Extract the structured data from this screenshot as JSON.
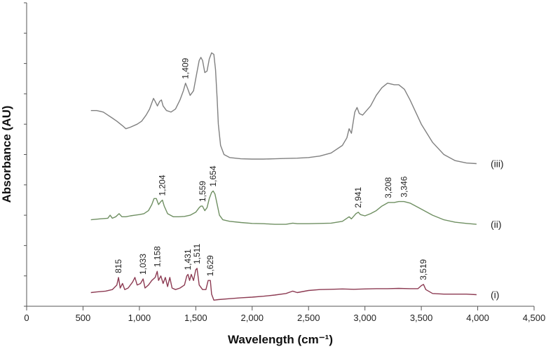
{
  "chart_data": {
    "type": "line",
    "title": "",
    "xlabel": "Wavelength (cm⁻¹)",
    "ylabel": "Absorbance (AU)",
    "xlim": [
      0,
      4500
    ],
    "ylim": [
      0,
      10
    ],
    "x_ticks": [
      0,
      500,
      1000,
      1500,
      2000,
      2500,
      3000,
      3500,
      4000,
      4500
    ],
    "x_tick_labels": [
      "0",
      "500",
      "1,000",
      "1,500",
      "2,000",
      "2,500",
      "3,000",
      "3,500",
      "4,000",
      "4,500"
    ],
    "y_ticks": [
      0,
      1,
      2,
      3,
      4,
      5,
      6,
      7,
      8,
      9,
      10
    ],
    "y_tick_labels_shown": false,
    "grid": false,
    "legend": "none",
    "series": [
      {
        "name": "(i)",
        "color": "#8c3a52",
        "points": [
          [
            570,
            0.45
          ],
          [
            620,
            0.47
          ],
          [
            700,
            0.5
          ],
          [
            760,
            0.55
          ],
          [
            800,
            0.7
          ],
          [
            815,
            0.95
          ],
          [
            830,
            0.6
          ],
          [
            850,
            0.75
          ],
          [
            870,
            0.55
          ],
          [
            900,
            0.6
          ],
          [
            940,
            0.8
          ],
          [
            960,
            0.95
          ],
          [
            980,
            0.7
          ],
          [
            1010,
            0.75
          ],
          [
            1033,
            0.9
          ],
          [
            1050,
            0.6
          ],
          [
            1080,
            0.7
          ],
          [
            1110,
            0.85
          ],
          [
            1140,
            0.95
          ],
          [
            1158,
            1.15
          ],
          [
            1170,
            0.85
          ],
          [
            1190,
            1.0
          ],
          [
            1210,
            0.75
          ],
          [
            1230,
            0.95
          ],
          [
            1250,
            0.65
          ],
          [
            1270,
            0.95
          ],
          [
            1290,
            0.6
          ],
          [
            1320,
            0.55
          ],
          [
            1360,
            0.6
          ],
          [
            1400,
            0.7
          ],
          [
            1420,
            1.0
          ],
          [
            1431,
            1.05
          ],
          [
            1445,
            0.85
          ],
          [
            1460,
            1.05
          ],
          [
            1480,
            0.85
          ],
          [
            1500,
            1.2
          ],
          [
            1511,
            1.25
          ],
          [
            1530,
            0.7
          ],
          [
            1560,
            0.55
          ],
          [
            1590,
            0.55
          ],
          [
            1610,
            0.85
          ],
          [
            1629,
            0.85
          ],
          [
            1640,
            0.4
          ],
          [
            1660,
            0.2
          ],
          [
            1700,
            0.22
          ],
          [
            1800,
            0.25
          ],
          [
            1900,
            0.28
          ],
          [
            2000,
            0.3
          ],
          [
            2100,
            0.33
          ],
          [
            2200,
            0.37
          ],
          [
            2300,
            0.42
          ],
          [
            2360,
            0.5
          ],
          [
            2400,
            0.45
          ],
          [
            2500,
            0.52
          ],
          [
            2600,
            0.55
          ],
          [
            2700,
            0.56
          ],
          [
            2800,
            0.57
          ],
          [
            2900,
            0.56
          ],
          [
            3000,
            0.57
          ],
          [
            3100,
            0.58
          ],
          [
            3200,
            0.58
          ],
          [
            3300,
            0.59
          ],
          [
            3400,
            0.58
          ],
          [
            3470,
            0.58
          ],
          [
            3500,
            0.68
          ],
          [
            3519,
            0.72
          ],
          [
            3540,
            0.55
          ],
          [
            3600,
            0.42
          ],
          [
            3700,
            0.4
          ],
          [
            3800,
            0.4
          ],
          [
            3900,
            0.4
          ],
          [
            3990,
            0.38
          ]
        ]
      },
      {
        "name": "(ii)",
        "color": "#6f8f62",
        "points": [
          [
            570,
            2.85
          ],
          [
            650,
            2.88
          ],
          [
            720,
            2.9
          ],
          [
            740,
            3.0
          ],
          [
            760,
            2.9
          ],
          [
            790,
            2.95
          ],
          [
            820,
            3.05
          ],
          [
            845,
            2.95
          ],
          [
            880,
            2.95
          ],
          [
            920,
            2.98
          ],
          [
            960,
            3.0
          ],
          [
            1000,
            3.02
          ],
          [
            1040,
            3.05
          ],
          [
            1080,
            3.15
          ],
          [
            1110,
            3.35
          ],
          [
            1130,
            3.55
          ],
          [
            1150,
            3.55
          ],
          [
            1170,
            3.35
          ],
          [
            1190,
            3.45
          ],
          [
            1204,
            3.5
          ],
          [
            1220,
            3.3
          ],
          [
            1250,
            3.05
          ],
          [
            1300,
            2.95
          ],
          [
            1350,
            2.95
          ],
          [
            1400,
            2.96
          ],
          [
            1450,
            3.0
          ],
          [
            1500,
            3.1
          ],
          [
            1530,
            3.25
          ],
          [
            1545,
            3.3
          ],
          [
            1559,
            3.3
          ],
          [
            1580,
            3.15
          ],
          [
            1600,
            3.25
          ],
          [
            1620,
            3.55
          ],
          [
            1640,
            3.75
          ],
          [
            1654,
            3.8
          ],
          [
            1670,
            3.7
          ],
          [
            1690,
            3.35
          ],
          [
            1710,
            3.0
          ],
          [
            1740,
            2.85
          ],
          [
            1800,
            2.8
          ],
          [
            1900,
            2.76
          ],
          [
            2000,
            2.73
          ],
          [
            2100,
            2.72
          ],
          [
            2200,
            2.7
          ],
          [
            2300,
            2.7
          ],
          [
            2360,
            2.74
          ],
          [
            2400,
            2.72
          ],
          [
            2500,
            2.72
          ],
          [
            2600,
            2.73
          ],
          [
            2700,
            2.74
          ],
          [
            2800,
            2.8
          ],
          [
            2860,
            2.95
          ],
          [
            2880,
            2.88
          ],
          [
            2920,
            3.05
          ],
          [
            2941,
            3.1
          ],
          [
            2960,
            3.02
          ],
          [
            3000,
            2.98
          ],
          [
            3050,
            3.05
          ],
          [
            3100,
            3.15
          ],
          [
            3150,
            3.3
          ],
          [
            3208,
            3.42
          ],
          [
            3260,
            3.42
          ],
          [
            3300,
            3.45
          ],
          [
            3346,
            3.45
          ],
          [
            3400,
            3.4
          ],
          [
            3500,
            3.2
          ],
          [
            3600,
            3.0
          ],
          [
            3700,
            2.85
          ],
          [
            3800,
            2.77
          ],
          [
            3900,
            2.73
          ],
          [
            3990,
            2.7
          ]
        ]
      },
      {
        "name": "(iii)",
        "color": "#808080",
        "points": [
          [
            570,
            6.45
          ],
          [
            620,
            6.45
          ],
          [
            680,
            6.4
          ],
          [
            720,
            6.3
          ],
          [
            760,
            6.2
          ],
          [
            800,
            6.1
          ],
          [
            850,
            5.95
          ],
          [
            880,
            5.85
          ],
          [
            920,
            5.9
          ],
          [
            980,
            6.0
          ],
          [
            1020,
            6.1
          ],
          [
            1060,
            6.3
          ],
          [
            1090,
            6.5
          ],
          [
            1110,
            6.7
          ],
          [
            1125,
            6.85
          ],
          [
            1140,
            6.75
          ],
          [
            1160,
            6.6
          ],
          [
            1180,
            6.75
          ],
          [
            1195,
            6.8
          ],
          [
            1210,
            6.6
          ],
          [
            1240,
            6.45
          ],
          [
            1280,
            6.4
          ],
          [
            1320,
            6.5
          ],
          [
            1360,
            6.8
          ],
          [
            1390,
            7.1
          ],
          [
            1409,
            7.35
          ],
          [
            1425,
            7.2
          ],
          [
            1450,
            6.95
          ],
          [
            1480,
            7.1
          ],
          [
            1510,
            7.7
          ],
          [
            1530,
            8.1
          ],
          [
            1545,
            8.2
          ],
          [
            1560,
            8.1
          ],
          [
            1580,
            7.7
          ],
          [
            1600,
            7.75
          ],
          [
            1620,
            8.15
          ],
          [
            1640,
            8.35
          ],
          [
            1660,
            8.3
          ],
          [
            1675,
            7.8
          ],
          [
            1690,
            6.8
          ],
          [
            1700,
            6.0
          ],
          [
            1720,
            5.3
          ],
          [
            1750,
            5.0
          ],
          [
            1800,
            4.9
          ],
          [
            1900,
            4.86
          ],
          [
            2000,
            4.85
          ],
          [
            2100,
            4.85
          ],
          [
            2200,
            4.86
          ],
          [
            2300,
            4.87
          ],
          [
            2400,
            4.88
          ],
          [
            2500,
            4.9
          ],
          [
            2600,
            4.95
          ],
          [
            2700,
            5.05
          ],
          [
            2800,
            5.3
          ],
          [
            2840,
            5.55
          ],
          [
            2860,
            5.85
          ],
          [
            2880,
            5.7
          ],
          [
            2910,
            6.4
          ],
          [
            2930,
            6.55
          ],
          [
            2950,
            6.35
          ],
          [
            2980,
            6.3
          ],
          [
            3050,
            6.6
          ],
          [
            3100,
            6.95
          ],
          [
            3150,
            7.2
          ],
          [
            3200,
            7.35
          ],
          [
            3260,
            7.3
          ],
          [
            3300,
            7.3
          ],
          [
            3350,
            7.15
          ],
          [
            3400,
            6.8
          ],
          [
            3500,
            6.0
          ],
          [
            3600,
            5.4
          ],
          [
            3700,
            5.0
          ],
          [
            3800,
            4.8
          ],
          [
            3900,
            4.72
          ],
          [
            3990,
            4.7
          ]
        ]
      }
    ],
    "peak_labels": [
      {
        "series": "(iii)",
        "x": 1409,
        "text": "1,409"
      },
      {
        "series": "(ii)",
        "x": 1204,
        "text": "1,204"
      },
      {
        "series": "(ii)",
        "x": 1559,
        "text": "1,559"
      },
      {
        "series": "(ii)",
        "x": 1654,
        "text": "1,654"
      },
      {
        "series": "(ii)",
        "x": 2941,
        "text": "2,941"
      },
      {
        "series": "(ii)",
        "x": 3208,
        "text": "3,208"
      },
      {
        "series": "(ii)",
        "x": 3346,
        "text": "3,346"
      },
      {
        "series": "(i)",
        "x": 815,
        "text": "815"
      },
      {
        "series": "(i)",
        "x": 1033,
        "text": "1,033"
      },
      {
        "series": "(i)",
        "x": 1158,
        "text": "1,158"
      },
      {
        "series": "(i)",
        "x": 1431,
        "text": "1,431"
      },
      {
        "series": "(i)",
        "x": 1511,
        "text": "1,511"
      },
      {
        "series": "(i)",
        "x": 1629,
        "text": "1,629"
      },
      {
        "series": "(i)",
        "x": 3519,
        "text": "3,519"
      }
    ]
  }
}
